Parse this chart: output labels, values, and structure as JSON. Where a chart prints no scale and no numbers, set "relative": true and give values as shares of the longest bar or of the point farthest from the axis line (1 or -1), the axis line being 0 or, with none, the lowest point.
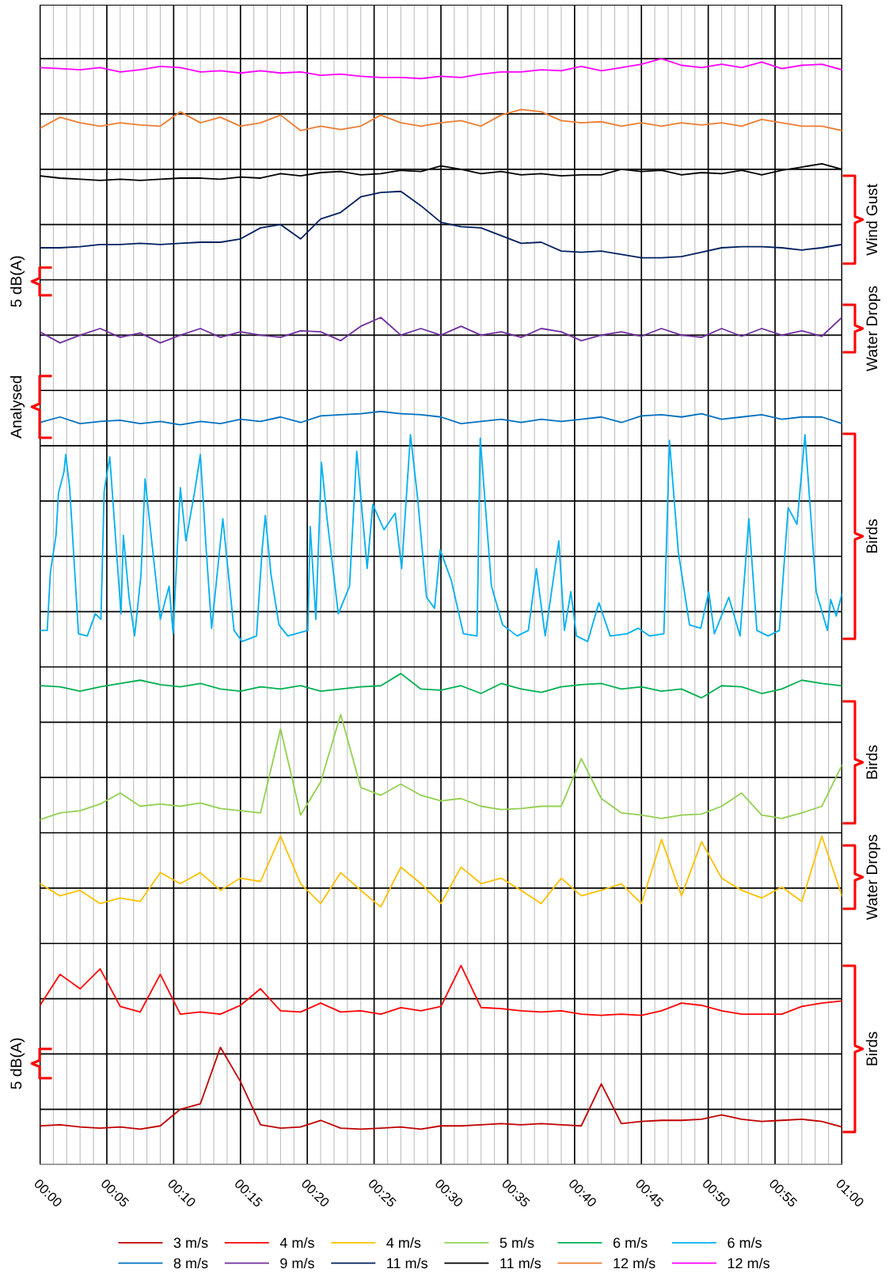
{
  "chart_data": {
    "type": "line",
    "relative": true,
    "grid": true,
    "legend": "bottom",
    "tick_labels": "x",
    "line_style": "solid",
    "marker": "none",
    "xlim": [
      0,
      1
    ],
    "xticks": [
      {
        "value": 0,
        "label": "00:00"
      },
      {
        "value": 0.083333,
        "label": "00:05"
      },
      {
        "value": 0.166667,
        "label": "00:10"
      },
      {
        "value": 0.25,
        "label": "00:15"
      },
      {
        "value": 0.333333,
        "label": "00:20"
      },
      {
        "value": 0.416667,
        "label": "00:25"
      },
      {
        "value": 0.5,
        "label": "00:30"
      },
      {
        "value": 0.583333,
        "label": "00:35"
      },
      {
        "value": 0.666667,
        "label": "00:40"
      },
      {
        "value": 0.75,
        "label": "00:45"
      },
      {
        "value": 0.833333,
        "label": "00:50"
      },
      {
        "value": 0.916667,
        "label": "00:55"
      },
      {
        "value": 1,
        "label": "01:00"
      }
    ],
    "x": [
      0,
      0.025,
      0.05,
      0.075,
      0.1,
      0.125,
      0.15,
      0.175,
      0.2,
      0.225,
      0.25,
      0.275,
      0.3,
      0.325,
      0.35,
      0.375,
      0.4,
      0.425,
      0.45,
      0.475,
      0.5,
      0.525,
      0.55,
      0.575,
      0.6,
      0.625,
      0.65,
      0.675,
      0.7,
      0.725,
      0.75,
      0.775,
      0.8,
      0.825,
      0.85,
      0.875,
      0.9,
      0.925,
      0.95,
      0.975,
      1.0
    ],
    "series": [
      {
        "name": "3 m/s",
        "color": "#c00000",
        "values": [
          0.035,
          0.036,
          0.034,
          0.033,
          0.034,
          0.032,
          0.035,
          0.05,
          0.055,
          0.106,
          0.075,
          0.036,
          0.033,
          0.034,
          0.04,
          0.033,
          0.032,
          0.033,
          0.034,
          0.032,
          0.035,
          0.035,
          0.036,
          0.037,
          0.036,
          0.037,
          0.036,
          0.035,
          0.073,
          0.037,
          0.039,
          0.04,
          0.04,
          0.041,
          0.045,
          0.041,
          0.039,
          0.04,
          0.041,
          0.039,
          0.034
        ]
      },
      {
        "name": "4 m/s",
        "color": "#ff0000",
        "values": [
          0.144,
          0.172,
          0.159,
          0.177,
          0.143,
          0.138,
          0.172,
          0.136,
          0.138,
          0.136,
          0.144,
          0.159,
          0.139,
          0.138,
          0.146,
          0.138,
          0.139,
          0.136,
          0.142,
          0.139,
          0.143,
          0.18,
          0.142,
          0.141,
          0.139,
          0.138,
          0.139,
          0.136,
          0.135,
          0.136,
          0.135,
          0.139,
          0.146,
          0.144,
          0.139,
          0.136,
          0.136,
          0.136,
          0.143,
          0.146,
          0.148
        ]
      },
      {
        "name": "4 m/s",
        "color": "#ffc000",
        "values": [
          0.254,
          0.243,
          0.248,
          0.236,
          0.241,
          0.238,
          0.264,
          0.254,
          0.264,
          0.248,
          0.259,
          0.256,
          0.297,
          0.254,
          0.236,
          0.264,
          0.248,
          0.233,
          0.269,
          0.254,
          0.236,
          0.269,
          0.254,
          0.259,
          0.248,
          0.236,
          0.259,
          0.243,
          0.248,
          0.254,
          0.236,
          0.294,
          0.243,
          0.292,
          0.259,
          0.248,
          0.241,
          0.251,
          0.238,
          0.297,
          0.243
        ]
      },
      {
        "name": "5 m/s",
        "color": "#92d050",
        "values": [
          0.312,
          0.318,
          0.32,
          0.326,
          0.336,
          0.324,
          0.326,
          0.324,
          0.327,
          0.322,
          0.32,
          0.318,
          0.394,
          0.316,
          0.346,
          0.407,
          0.341,
          0.334,
          0.344,
          0.334,
          0.329,
          0.331,
          0.324,
          0.321,
          0.322,
          0.324,
          0.324,
          0.367,
          0.331,
          0.318,
          0.316,
          0.313,
          0.316,
          0.317,
          0.324,
          0.336,
          0.316,
          0.313,
          0.318,
          0.324,
          0.361
        ]
      },
      {
        "name": "6 m/s",
        "color": "#00b050",
        "values": [
          0.433,
          0.432,
          0.428,
          0.432,
          0.435,
          0.438,
          0.434,
          0.432,
          0.435,
          0.43,
          0.428,
          0.432,
          0.43,
          0.433,
          0.428,
          0.43,
          0.432,
          0.433,
          0.444,
          0.43,
          0.429,
          0.433,
          0.426,
          0.435,
          0.43,
          0.427,
          0.432,
          0.434,
          0.435,
          0.43,
          0.432,
          0.428,
          0.43,
          0.422,
          0.433,
          0.432,
          0.426,
          0.43,
          0.438,
          0.435,
          0.433
        ]
      },
      {
        "name": "6 m/s",
        "color": "#00b0f0",
        "x": [
          0.0,
          0.009,
          0.013,
          0.02,
          0.023,
          0.03,
          0.032,
          0.037,
          0.048,
          0.059,
          0.069,
          0.076,
          0.08,
          0.087,
          0.094,
          0.101,
          0.104,
          0.111,
          0.118,
          0.126,
          0.131,
          0.14,
          0.15,
          0.161,
          0.166,
          0.175,
          0.182,
          0.193,
          0.2,
          0.207,
          0.214,
          0.228,
          0.242,
          0.252,
          0.27,
          0.277,
          0.281,
          0.288,
          0.298,
          0.309,
          0.334,
          0.337,
          0.344,
          0.351,
          0.358,
          0.372,
          0.386,
          0.395,
          0.408,
          0.415,
          0.429,
          0.443,
          0.451,
          0.462,
          0.471,
          0.482,
          0.492,
          0.499,
          0.513,
          0.528,
          0.545,
          0.549,
          0.563,
          0.577,
          0.595,
          0.609,
          0.619,
          0.63,
          0.647,
          0.654,
          0.662,
          0.669,
          0.683,
          0.697,
          0.711,
          0.732,
          0.746,
          0.76,
          0.778,
          0.785,
          0.796,
          0.81,
          0.824,
          0.834,
          0.841,
          0.859,
          0.873,
          0.884,
          0.894,
          0.908,
          0.922,
          0.933,
          0.944,
          0.954,
          0.968,
          0.982,
          0.986,
          0.993,
          1.0
        ],
        "values": [
          0.483,
          0.483,
          0.536,
          0.569,
          0.607,
          0.627,
          0.642,
          0.612,
          0.48,
          0.478,
          0.498,
          0.493,
          0.609,
          0.64,
          0.569,
          0.498,
          0.569,
          0.513,
          0.478,
          0.534,
          0.62,
          0.559,
          0.493,
          0.523,
          0.48,
          0.612,
          0.564,
          0.609,
          0.642,
          0.559,
          0.485,
          0.584,
          0.483,
          0.473,
          0.478,
          0.556,
          0.587,
          0.534,
          0.488,
          0.478,
          0.483,
          0.577,
          0.493,
          0.635,
          0.584,
          0.498,
          0.523,
          0.645,
          0.539,
          0.597,
          0.574,
          0.589,
          0.539,
          0.66,
          0.602,
          0.513,
          0.503,
          0.556,
          0.528,
          0.48,
          0.478,
          0.657,
          0.523,
          0.488,
          0.478,
          0.483,
          0.539,
          0.478,
          0.564,
          0.483,
          0.518,
          0.478,
          0.473,
          0.508,
          0.478,
          0.48,
          0.485,
          0.478,
          0.48,
          0.655,
          0.554,
          0.488,
          0.485,
          0.518,
          0.48,
          0.513,
          0.478,
          0.584,
          0.483,
          0.478,
          0.483,
          0.594,
          0.579,
          0.66,
          0.518,
          0.483,
          0.511,
          0.496,
          0.516
        ]
      },
      {
        "name": "8 m/s",
        "color": "#0070c0",
        "values": [
          0.671,
          0.676,
          0.67,
          0.672,
          0.673,
          0.67,
          0.672,
          0.669,
          0.672,
          0.67,
          0.674,
          0.672,
          0.676,
          0.671,
          0.677,
          0.678,
          0.679,
          0.681,
          0.679,
          0.678,
          0.676,
          0.67,
          0.672,
          0.674,
          0.671,
          0.674,
          0.672,
          0.674,
          0.676,
          0.671,
          0.677,
          0.678,
          0.676,
          0.679,
          0.674,
          0.676,
          0.678,
          0.674,
          0.676,
          0.676,
          0.67
        ]
      },
      {
        "name": "9 m/s",
        "color": "#7030a0",
        "values": [
          0.753,
          0.743,
          0.75,
          0.756,
          0.748,
          0.752,
          0.743,
          0.75,
          0.756,
          0.748,
          0.753,
          0.75,
          0.748,
          0.754,
          0.753,
          0.745,
          0.758,
          0.766,
          0.75,
          0.756,
          0.75,
          0.758,
          0.75,
          0.753,
          0.748,
          0.756,
          0.753,
          0.745,
          0.75,
          0.753,
          0.749,
          0.756,
          0.75,
          0.748,
          0.756,
          0.749,
          0.756,
          0.75,
          0.754,
          0.749,
          0.766
        ]
      },
      {
        "name": "11 m/s",
        "color": "#002060",
        "values": [
          0.829,
          0.829,
          0.83,
          0.832,
          0.832,
          0.833,
          0.832,
          0.833,
          0.834,
          0.834,
          0.837,
          0.847,
          0.85,
          0.837,
          0.855,
          0.861,
          0.875,
          0.879,
          0.88,
          0.867,
          0.852,
          0.848,
          0.847,
          0.84,
          0.833,
          0.834,
          0.826,
          0.825,
          0.826,
          0.823,
          0.82,
          0.82,
          0.821,
          0.825,
          0.829,
          0.83,
          0.83,
          0.829,
          0.827,
          0.829,
          0.832
        ]
      },
      {
        "name": "11 m/s",
        "color": "#000000",
        "values": [
          0.894,
          0.892,
          0.891,
          0.89,
          0.891,
          0.89,
          0.891,
          0.892,
          0.892,
          0.891,
          0.893,
          0.892,
          0.896,
          0.894,
          0.897,
          0.898,
          0.895,
          0.896,
          0.899,
          0.898,
          0.903,
          0.9,
          0.896,
          0.898,
          0.895,
          0.896,
          0.894,
          0.895,
          0.895,
          0.9,
          0.898,
          0.899,
          0.895,
          0.897,
          0.896,
          0.899,
          0.895,
          0.899,
          0.902,
          0.905,
          0.9
        ]
      },
      {
        "name": "12 m/s",
        "color": "#ed7d31",
        "values": [
          0.937,
          0.947,
          0.942,
          0.939,
          0.942,
          0.94,
          0.939,
          0.952,
          0.942,
          0.947,
          0.939,
          0.942,
          0.949,
          0.935,
          0.939,
          0.936,
          0.939,
          0.949,
          0.942,
          0.939,
          0.942,
          0.944,
          0.939,
          0.949,
          0.954,
          0.952,
          0.944,
          0.942,
          0.943,
          0.939,
          0.942,
          0.939,
          0.942,
          0.94,
          0.942,
          0.939,
          0.945,
          0.942,
          0.939,
          0.939,
          0.935
        ]
      },
      {
        "name": "12 m/s",
        "color": "#ff00ff",
        "values": [
          0.992,
          0.991,
          0.99,
          0.992,
          0.988,
          0.99,
          0.993,
          0.992,
          0.988,
          0.989,
          0.987,
          0.989,
          0.987,
          0.988,
          0.985,
          0.986,
          0.984,
          0.983,
          0.983,
          0.982,
          0.984,
          0.983,
          0.986,
          0.988,
          0.988,
          0.99,
          0.989,
          0.993,
          0.989,
          0.992,
          0.995,
          1.0,
          0.994,
          0.992,
          0.995,
          0.992,
          0.997,
          0.991,
          0.994,
          0.995,
          0.99
        ]
      }
    ],
    "annotations": [
      "Wind Gust",
      "5 dB(A)",
      "Water Drops",
      "Analysed",
      "Birds",
      "Birds",
      "Water Drops",
      "Birds",
      "5 dB(A)"
    ]
  }
}
